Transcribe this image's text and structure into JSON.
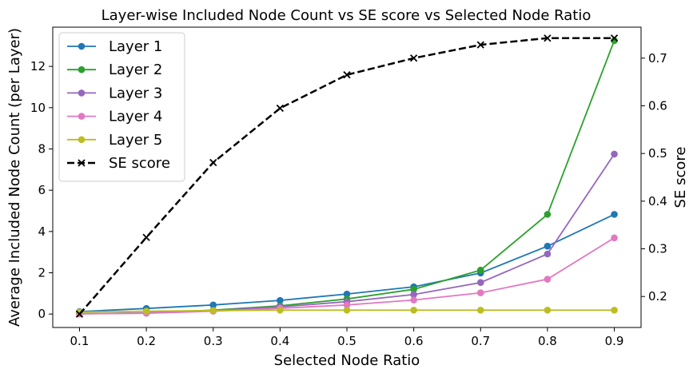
{
  "chart_data": {
    "type": "line",
    "title": "Layer-wise Included Node Count vs SE score vs Selected Node Ratio",
    "xlabel": "Selected Node Ratio",
    "ylabel": "Average Included Node Count (per Layer)",
    "y2label": "SE score",
    "x": [
      0.1,
      0.2,
      0.3,
      0.4,
      0.5,
      0.6,
      0.7,
      0.8,
      0.9
    ],
    "x_ticks": [
      "0.1",
      "0.2",
      "0.3",
      "0.4",
      "0.5",
      "0.6",
      "0.7",
      "0.8",
      "0.9"
    ],
    "xlim": [
      0.06,
      0.94
    ],
    "ylim": [
      -0.65,
      13.9
    ],
    "y_ticks": [
      0,
      2,
      4,
      6,
      8,
      10,
      12
    ],
    "y2lim": [
      0.135,
      0.765
    ],
    "y2_ticks": [
      0.2,
      0.3,
      0.4,
      0.5,
      0.6,
      0.7
    ],
    "legend_position": "top-left",
    "grid": false,
    "series": [
      {
        "name": "Layer 1",
        "axis": "left",
        "color": "#1f77b4",
        "style": "solid",
        "marker": "circle",
        "values": [
          0.12,
          0.27,
          0.44,
          0.66,
          0.97,
          1.32,
          1.99,
          3.29,
          4.83
        ]
      },
      {
        "name": "Layer 2",
        "axis": "left",
        "color": "#2ca02c",
        "style": "solid",
        "marker": "circle",
        "values": [
          0.02,
          0.06,
          0.19,
          0.4,
          0.73,
          1.2,
          2.13,
          4.83,
          13.25
        ]
      },
      {
        "name": "Layer 3",
        "axis": "left",
        "color": "#9467bd",
        "style": "solid",
        "marker": "circle",
        "values": [
          0.01,
          0.05,
          0.17,
          0.35,
          0.6,
          0.95,
          1.53,
          2.91,
          7.75
        ]
      },
      {
        "name": "Layer 4",
        "axis": "left",
        "color": "#e377c2",
        "style": "solid",
        "marker": "circle",
        "values": [
          0.01,
          0.04,
          0.14,
          0.28,
          0.44,
          0.68,
          1.03,
          1.69,
          3.69
        ]
      },
      {
        "name": "Layer 5",
        "axis": "left",
        "color": "#bcbd22",
        "style": "solid",
        "marker": "circle",
        "values": [
          0.1,
          0.14,
          0.17,
          0.19,
          0.19,
          0.19,
          0.19,
          0.19,
          0.19
        ]
      },
      {
        "name": "SE score",
        "axis": "right",
        "color": "#000000",
        "style": "dashed",
        "marker": "x",
        "values": [
          0.163,
          0.324,
          0.481,
          0.595,
          0.665,
          0.7,
          0.728,
          0.742,
          0.742
        ]
      }
    ]
  }
}
